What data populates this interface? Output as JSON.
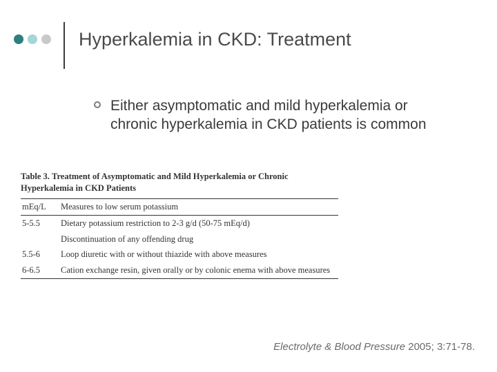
{
  "header": {
    "title": "Hyperkalemia in CKD: Treatment",
    "dots": [
      "#2f7f7f",
      "#a6d5d5",
      "#c9c9c9"
    ],
    "vline_color": "#3a3a3a"
  },
  "bullet": {
    "text": "Either asymptomatic and mild hyperkalemia or chronic hyperkalemia in CKD patients is common"
  },
  "table": {
    "caption_label": "Table 3.",
    "caption_text": "Treatment of Asymptomatic and Mild Hyperkalemia or Chronic Hyperkalemia in CKD Patients",
    "header_col1": "mEq/L",
    "header_col2": "Measures to low serum potassium",
    "rows": [
      {
        "range": "5-5.5",
        "measure": "Dietary potassium restriction to 2-3 g/d (50-75 mEq/d)"
      },
      {
        "range": "",
        "measure": "Discontinuation of any offending drug"
      },
      {
        "range": "5.5-6",
        "measure": "Loop diuretic with or without thiazide with above measures"
      },
      {
        "range": "6-6.5",
        "measure": "Cation exchange resin, given orally or by colonic enema with above measures"
      }
    ]
  },
  "citation": {
    "journal": "Electrolyte & Blood Pressure",
    "rest": " 2005; 3:71-78."
  }
}
